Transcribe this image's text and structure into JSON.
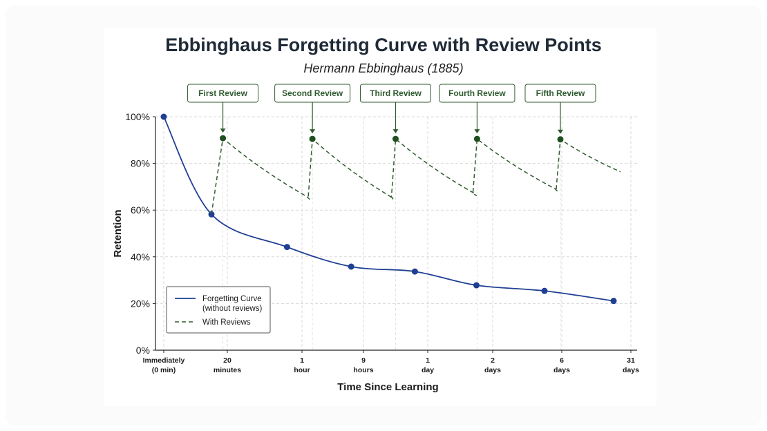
{
  "chart_data": {
    "type": "line",
    "title": "Ebbinghaus Forgetting Curve with Review Points",
    "subtitle": "Hermann Ebbinghaus (1885)",
    "xlabel": "Time Since Learning",
    "ylabel": "Retention",
    "ylim": [
      0,
      100
    ],
    "y_ticks": [
      0,
      20,
      40,
      60,
      80,
      100
    ],
    "y_tick_labels": [
      "0%",
      "20%",
      "40%",
      "60%",
      "80%",
      "100%"
    ],
    "categories": [
      [
        "Immediately",
        "(0 min)"
      ],
      [
        "20",
        "minutes"
      ],
      [
        "1",
        "hour"
      ],
      [
        "9",
        "hours"
      ],
      [
        "1",
        "day"
      ],
      [
        "2",
        "days"
      ],
      [
        "6",
        "days"
      ],
      [
        "31",
        "days"
      ]
    ],
    "grid": true,
    "legend_position": "bottom-left",
    "series": [
      {
        "name": "Forgetting Curve\n(without reviews)",
        "style": "solid",
        "color": "#1f3f93",
        "marker_points": [
          {
            "x": 0,
            "y": 100
          },
          {
            "x": 0.75,
            "y": 58.2
          },
          {
            "x": 1.8,
            "y": 44.2
          },
          {
            "x": 2.8,
            "y": 35.8
          },
          {
            "x": 3.8,
            "y": 33.7
          },
          {
            "x": 4.75,
            "y": 27.8
          },
          {
            "x": 5.75,
            "y": 25.4
          },
          {
            "x": 6.75,
            "y": 21.1
          }
        ]
      },
      {
        "name": "With Reviews",
        "style": "dashed",
        "color": "#2f5b2f",
        "cycles": [
          {
            "review_x": 0.93,
            "peak": 90.8,
            "trough_x": 2.08,
            "trough": 65.8
          },
          {
            "review_x": 2.17,
            "peak": 90.5,
            "trough_x": 3.42,
            "trough": 65.8
          },
          {
            "review_x": 3.5,
            "peak": 90.5,
            "trough_x": 4.71,
            "trough": 67.3
          },
          {
            "review_x": 4.76,
            "peak": 90.5,
            "trough_x": 5.9,
            "trough": 69.2
          },
          {
            "review_x": 5.98,
            "peak": 90.3,
            "trough_x": 6.85,
            "trough": 76.4
          }
        ]
      }
    ],
    "annotations": [
      {
        "label": "First Review",
        "x": 0.93
      },
      {
        "label": "Second Review",
        "x": 2.17
      },
      {
        "label": "Third Review",
        "x": 3.5
      },
      {
        "label": "Fourth Review",
        "x": 4.76
      },
      {
        "label": "Fifth Review",
        "x": 5.98
      }
    ],
    "colors": {
      "forgetting": "#1f3f93",
      "review": "#2f5b2f",
      "grid": "#d9d9d9"
    }
  }
}
